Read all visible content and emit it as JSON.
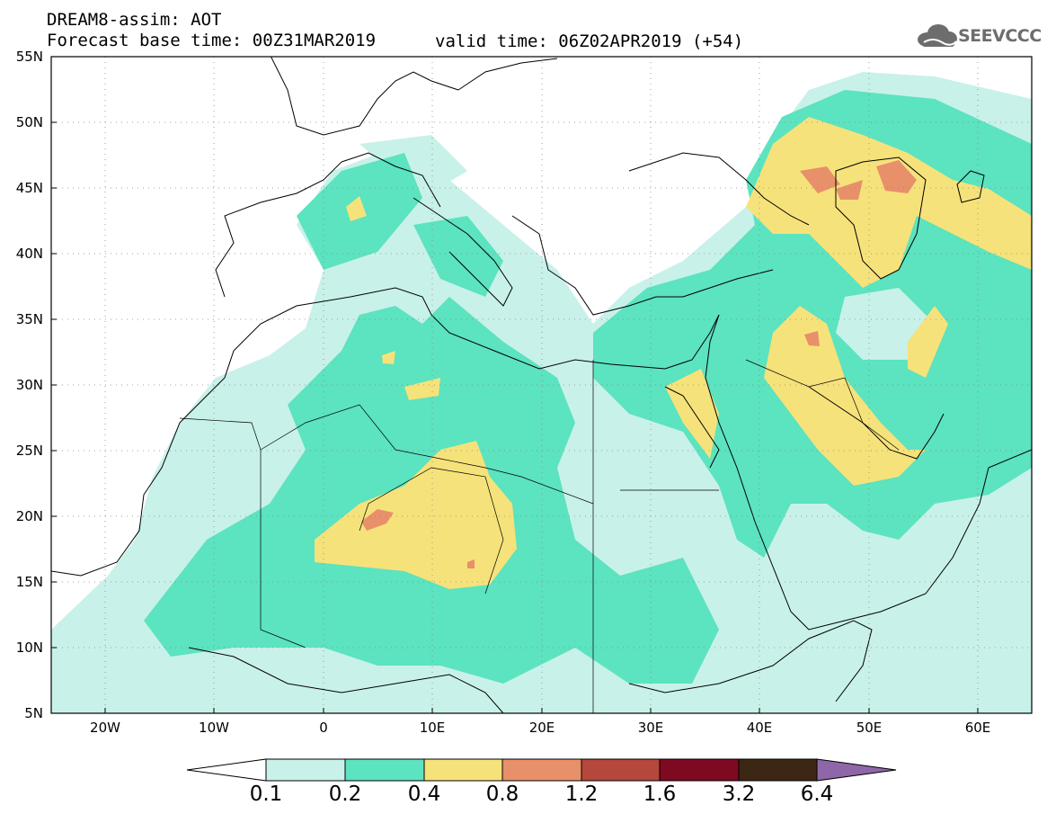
{
  "header": {
    "line1": "DREAM8-assim: AOT",
    "line2": "Forecast base time: 00Z31MAR2019",
    "valid": "valid time: 06Z02APR2019 (+54)"
  },
  "logo": {
    "text": "SEEVCCC",
    "icon": "cloud-icon"
  },
  "map": {
    "lon_range": [
      -25,
      65
    ],
    "lat_range": [
      5,
      55
    ],
    "lat_labels": [
      "55N",
      "50N",
      "45N",
      "40N",
      "35N",
      "30N",
      "25N",
      "20N",
      "15N",
      "10N",
      "5N"
    ],
    "lon_labels": [
      "20W",
      "10W",
      "0",
      "10E",
      "20E",
      "30E",
      "40E",
      "50E",
      "60E"
    ],
    "grid": "dotted"
  },
  "colorbar": {
    "tick_labels": [
      "0.1",
      "0.2",
      "0.4",
      "0.8",
      "1.2",
      "1.6",
      "3.2",
      "6.4"
    ],
    "colors": [
      "#ffffff",
      "#c8f1e9",
      "#5ce3bf",
      "#f6e27a",
      "#e8906a",
      "#b5473c",
      "#7e0a22",
      "#3c2714",
      "#8e67a8"
    ]
  }
}
